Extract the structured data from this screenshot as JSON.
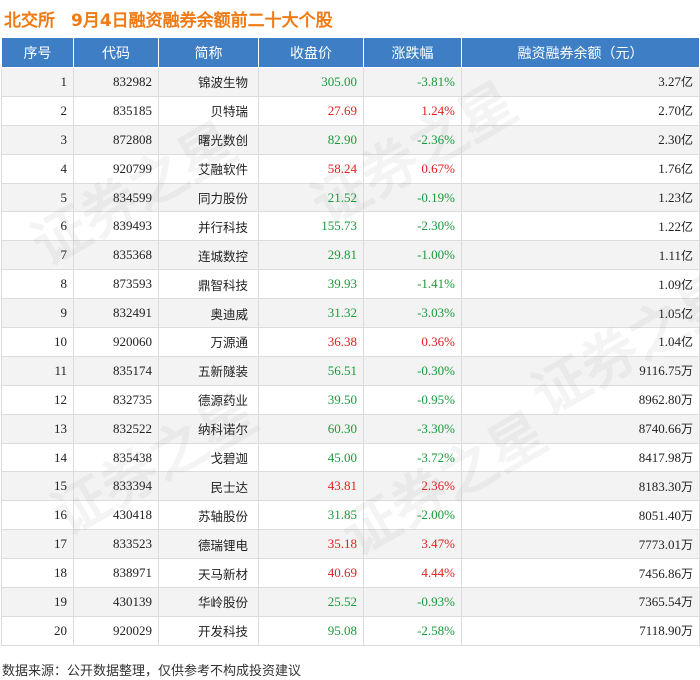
{
  "header": {
    "brand": "北交所",
    "title": "9月4日融资融券余额前二十大个股"
  },
  "table": {
    "columns": [
      "序号",
      "代码",
      "简称",
      "收盘价",
      "涨跌幅",
      "融资融券余额（元）"
    ],
    "rows": [
      {
        "idx": "1",
        "code": "832982",
        "name": "锦波生物",
        "price": "305.00",
        "pct": "-3.81%",
        "dir": "down",
        "amt": "3.27",
        "unit": "亿"
      },
      {
        "idx": "2",
        "code": "835185",
        "name": "贝特瑞",
        "price": "27.69",
        "pct": "1.24%",
        "dir": "up",
        "amt": "2.70",
        "unit": "亿"
      },
      {
        "idx": "3",
        "code": "872808",
        "name": "曙光数创",
        "price": "82.90",
        "pct": "-2.36%",
        "dir": "down",
        "amt": "2.30",
        "unit": "亿"
      },
      {
        "idx": "4",
        "code": "920799",
        "name": "艾融软件",
        "price": "58.24",
        "pct": "0.67%",
        "dir": "up",
        "amt": "1.76",
        "unit": "亿"
      },
      {
        "idx": "5",
        "code": "834599",
        "name": "同力股份",
        "price": "21.52",
        "pct": "-0.19%",
        "dir": "down",
        "amt": "1.23",
        "unit": "亿"
      },
      {
        "idx": "6",
        "code": "839493",
        "name": "并行科技",
        "price": "155.73",
        "pct": "-2.30%",
        "dir": "down",
        "amt": "1.22",
        "unit": "亿"
      },
      {
        "idx": "7",
        "code": "835368",
        "name": "连城数控",
        "price": "29.81",
        "pct": "-1.00%",
        "dir": "down",
        "amt": "1.11",
        "unit": "亿"
      },
      {
        "idx": "8",
        "code": "873593",
        "name": "鼎智科技",
        "price": "39.93",
        "pct": "-1.41%",
        "dir": "down",
        "amt": "1.09",
        "unit": "亿"
      },
      {
        "idx": "9",
        "code": "832491",
        "name": "奥迪威",
        "price": "31.32",
        "pct": "-3.03%",
        "dir": "down",
        "amt": "1.05",
        "unit": "亿"
      },
      {
        "idx": "10",
        "code": "920060",
        "name": "万源通",
        "price": "36.38",
        "pct": "0.36%",
        "dir": "up",
        "amt": "1.04",
        "unit": "亿"
      },
      {
        "idx": "11",
        "code": "835174",
        "name": "五新隧装",
        "price": "56.51",
        "pct": "-0.30%",
        "dir": "down",
        "amt": "9116.75",
        "unit": "万"
      },
      {
        "idx": "12",
        "code": "832735",
        "name": "德源药业",
        "price": "39.50",
        "pct": "-0.95%",
        "dir": "down",
        "amt": "8962.80",
        "unit": "万"
      },
      {
        "idx": "13",
        "code": "832522",
        "name": "纳科诺尔",
        "price": "60.30",
        "pct": "-3.30%",
        "dir": "down",
        "amt": "8740.66",
        "unit": "万"
      },
      {
        "idx": "14",
        "code": "835438",
        "name": "戈碧迦",
        "price": "45.00",
        "pct": "-3.72%",
        "dir": "down",
        "amt": "8417.98",
        "unit": "万"
      },
      {
        "idx": "15",
        "code": "833394",
        "name": "民士达",
        "price": "43.81",
        "pct": "2.36%",
        "dir": "up",
        "amt": "8183.30",
        "unit": "万"
      },
      {
        "idx": "16",
        "code": "430418",
        "name": "苏轴股份",
        "price": "31.85",
        "pct": "-2.00%",
        "dir": "down",
        "amt": "8051.40",
        "unit": "万"
      },
      {
        "idx": "17",
        "code": "833523",
        "name": "德瑞锂电",
        "price": "35.18",
        "pct": "3.47%",
        "dir": "up",
        "amt": "7773.01",
        "unit": "万"
      },
      {
        "idx": "18",
        "code": "838971",
        "name": "天马新材",
        "price": "40.69",
        "pct": "4.44%",
        "dir": "up",
        "amt": "7456.86",
        "unit": "万"
      },
      {
        "idx": "19",
        "code": "430139",
        "name": "华岭股份",
        "price": "25.52",
        "pct": "-0.93%",
        "dir": "down",
        "amt": "7365.54",
        "unit": "万"
      },
      {
        "idx": "20",
        "code": "920029",
        "name": "开发科技",
        "price": "95.08",
        "pct": "-2.58%",
        "dir": "down",
        "amt": "7118.90",
        "unit": "万"
      }
    ]
  },
  "footer": {
    "source": "数据来源：公开数据整理，仅供参考不构成投资建议"
  },
  "watermark": {
    "text": "证券之星"
  },
  "colors": {
    "brand": "#f07a14",
    "header_bg": "#3d7ec4",
    "up": "#e02020",
    "down": "#1a9a3a"
  }
}
